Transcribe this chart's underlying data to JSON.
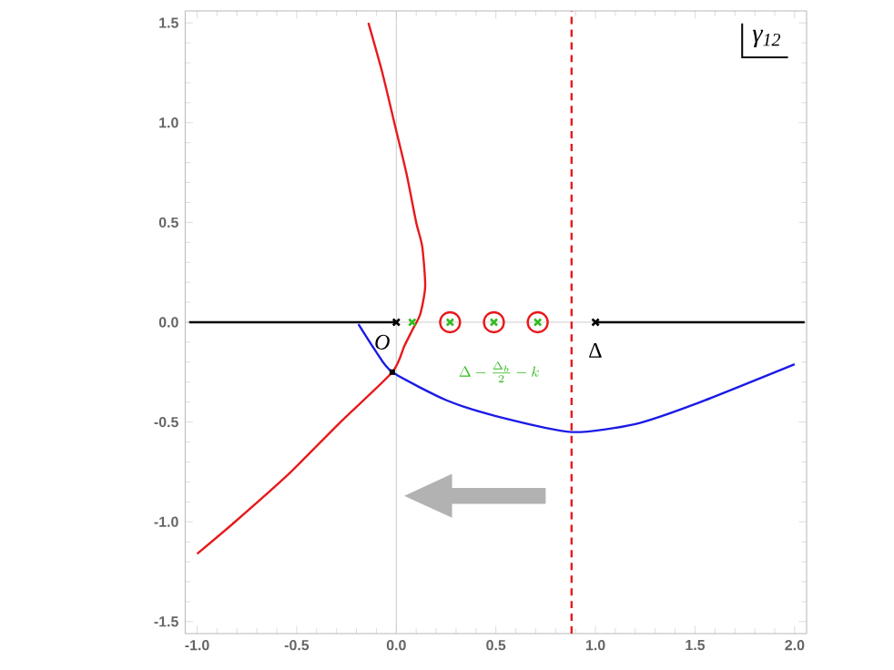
{
  "chart_data": {
    "type": "line",
    "xlim": [
      -1.06,
      2.06
    ],
    "ylim": [
      -1.56,
      1.56
    ],
    "xticks": [
      {
        "value": -1,
        "label": "-1.0"
      },
      {
        "value": -0.5,
        "label": "-0.5"
      },
      {
        "value": 0,
        "label": "0.0"
      },
      {
        "value": 0.5,
        "label": "0.5"
      },
      {
        "value": 1,
        "label": "1.0"
      },
      {
        "value": 1.5,
        "label": "1.5"
      },
      {
        "value": 2,
        "label": "2.0"
      }
    ],
    "yticks": [
      {
        "value": -1.5,
        "label": "-1.5"
      },
      {
        "value": -1,
        "label": "-1.0"
      },
      {
        "value": -0.5,
        "label": "-0.5"
      },
      {
        "value": 0,
        "label": "0.0"
      },
      {
        "value": 0.5,
        "label": "0.5"
      },
      {
        "value": 1,
        "label": "1.0"
      },
      {
        "value": 1.5,
        "label": "1.5"
      }
    ],
    "grid": false,
    "ref_lines": [
      {
        "axis": "x",
        "value": 0,
        "color": "#cccccc",
        "line_style": "solid"
      },
      {
        "axis": "y",
        "value": 0,
        "color": "#cccccc",
        "line_style": "solid"
      },
      {
        "axis": "x",
        "value": 0.88,
        "color": "#e8191c",
        "line_style": "dashed"
      }
    ],
    "series": [
      {
        "color": "#e8191c",
        "x": [
          -1.0,
          -0.81,
          -0.54,
          -0.28,
          -0.02,
          0.04,
          0.08,
          0.12,
          0.145,
          0.13,
          0.1,
          0.05,
          -0.01,
          -0.07,
          -0.14
        ],
        "values": [
          -1.16,
          -1.0,
          -0.76,
          -0.5,
          -0.25,
          -0.12,
          -0.04,
          0.04,
          0.18,
          0.38,
          0.5,
          0.75,
          1.0,
          1.25,
          1.5
        ]
      },
      {
        "color": "#1a1ae6",
        "x": [
          -0.19,
          -0.1,
          -0.02,
          0.25,
          0.5,
          0.88,
          1.2,
          1.5,
          2.0
        ],
        "values": [
          -0.01,
          -0.15,
          -0.25,
          -0.39,
          -0.47,
          -0.55,
          -0.51,
          -0.41,
          -0.21
        ]
      },
      {
        "color": "#000000",
        "x": [
          -1.04,
          0
        ],
        "values": [
          0,
          0
        ]
      },
      {
        "color": "#000000",
        "x": [
          1.0,
          2.05
        ],
        "values": [
          0,
          0
        ]
      },
      {
        "type": "scatter",
        "marker": "cross",
        "color": "#000000",
        "x": [
          0,
          1.0
        ],
        "values": [
          0,
          0
        ]
      },
      {
        "type": "scatter",
        "marker": "cross",
        "color": "#33bb22",
        "x": [
          0.08,
          0.27,
          0.49,
          0.71
        ],
        "values": [
          0,
          0,
          0,
          0
        ]
      },
      {
        "type": "scatter",
        "marker": "circle",
        "color": "#e8191c",
        "x": [
          0.27,
          0.49,
          0.71
        ],
        "values": [
          0,
          0,
          0
        ]
      },
      {
        "type": "scatter",
        "marker": "square",
        "color": "#000000",
        "x": [
          -0.02
        ],
        "values": [
          -0.25
        ]
      }
    ],
    "annotations": [
      "O",
      "Δ",
      "\\Delta-\\frac{\\Delta_b}{2}-k",
      "γ$_{12}$"
    ]
  }
}
